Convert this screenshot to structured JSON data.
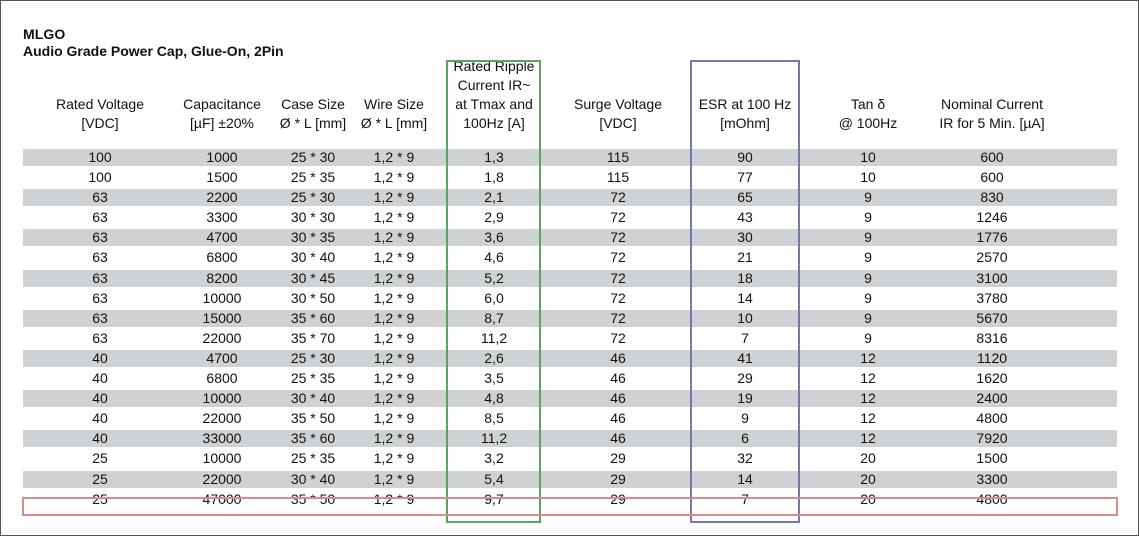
{
  "title": "MLGO",
  "subtitle": "Audio Grade Power Cap, Glue-On, 2Pin",
  "headers": [
    [
      "Rated Voltage",
      "[VDC]"
    ],
    [
      "Capacitance",
      "[µF] ±20%"
    ],
    [
      "Case Size",
      "Ø * L [mm]"
    ],
    [
      "Wire Size",
      "Ø * L [mm]"
    ],
    [
      "Rated Ripple",
      "Current IR~",
      "at Tmax and",
      "100Hz [A]"
    ],
    [
      "Surge Voltage",
      "[VDC]"
    ],
    [
      "ESR at 100 Hz",
      "[mOhm]"
    ],
    [
      "Tan δ",
      "@ 100Hz"
    ],
    [
      "Nominal Current",
      "IR for 5 Min. [µA]"
    ]
  ],
  "rows": [
    [
      "100",
      "1000",
      "25 * 30",
      "1,2 * 9",
      "1,3",
      "115",
      "90",
      "10",
      "600"
    ],
    [
      "100",
      "1500",
      "25 * 35",
      "1,2 * 9",
      "1,8",
      "115",
      "77",
      "10",
      "600"
    ],
    [
      "63",
      "2200",
      "25 * 30",
      "1,2 * 9",
      "2,1",
      "72",
      "65",
      "9",
      "830"
    ],
    [
      "63",
      "3300",
      "30 * 30",
      "1,2 * 9",
      "2,9",
      "72",
      "43",
      "9",
      "1246"
    ],
    [
      "63",
      "4700",
      "30 * 35",
      "1,2 * 9",
      "3,6",
      "72",
      "30",
      "9",
      "1776"
    ],
    [
      "63",
      "6800",
      "30 * 40",
      "1,2 * 9",
      "4,6",
      "72",
      "21",
      "9",
      "2570"
    ],
    [
      "63",
      "8200",
      "30 * 45",
      "1,2 * 9",
      "5,2",
      "72",
      "18",
      "9",
      "3100"
    ],
    [
      "63",
      "10000",
      "30 * 50",
      "1,2 * 9",
      "6,0",
      "72",
      "14",
      "9",
      "3780"
    ],
    [
      "63",
      "15000",
      "35 * 60",
      "1,2 * 9",
      "8,7",
      "72",
      "10",
      "9",
      "5670"
    ],
    [
      "63",
      "22000",
      "35 * 70",
      "1,2 * 9",
      "11,2",
      "72",
      "7",
      "9",
      "8316"
    ],
    [
      "40",
      "4700",
      "25 * 30",
      "1,2 * 9",
      "2,6",
      "46",
      "41",
      "12",
      "1120"
    ],
    [
      "40",
      "6800",
      "25 * 35",
      "1,2 * 9",
      "3,5",
      "46",
      "29",
      "12",
      "1620"
    ],
    [
      "40",
      "10000",
      "30 * 40",
      "1,2 * 9",
      "4,8",
      "46",
      "19",
      "12",
      "2400"
    ],
    [
      "40",
      "22000",
      "35 * 50",
      "1,2 * 9",
      "8,5",
      "46",
      "9",
      "12",
      "4800"
    ],
    [
      "40",
      "33000",
      "35 * 60",
      "1,2 * 9",
      "11,2",
      "46",
      "6",
      "12",
      "7920"
    ],
    [
      "25",
      "10000",
      "25 * 35",
      "1,2 * 9",
      "3,2",
      "29",
      "32",
      "20",
      "1500"
    ],
    [
      "25",
      "22000",
      "30 * 40",
      "1,2 * 9",
      "5,4",
      "29",
      "14",
      "20",
      "3300"
    ],
    [
      "25",
      "47000",
      "35 * 50",
      "1,2 * 9",
      "9,7",
      "29",
      "7",
      "20",
      "4800"
    ]
  ],
  "colors": {
    "row_shade": "#cfd2d4",
    "highlight_ripple": "#5aa55a",
    "highlight_esr": "#7778a8",
    "highlight_last_row": "#d98a8a"
  }
}
